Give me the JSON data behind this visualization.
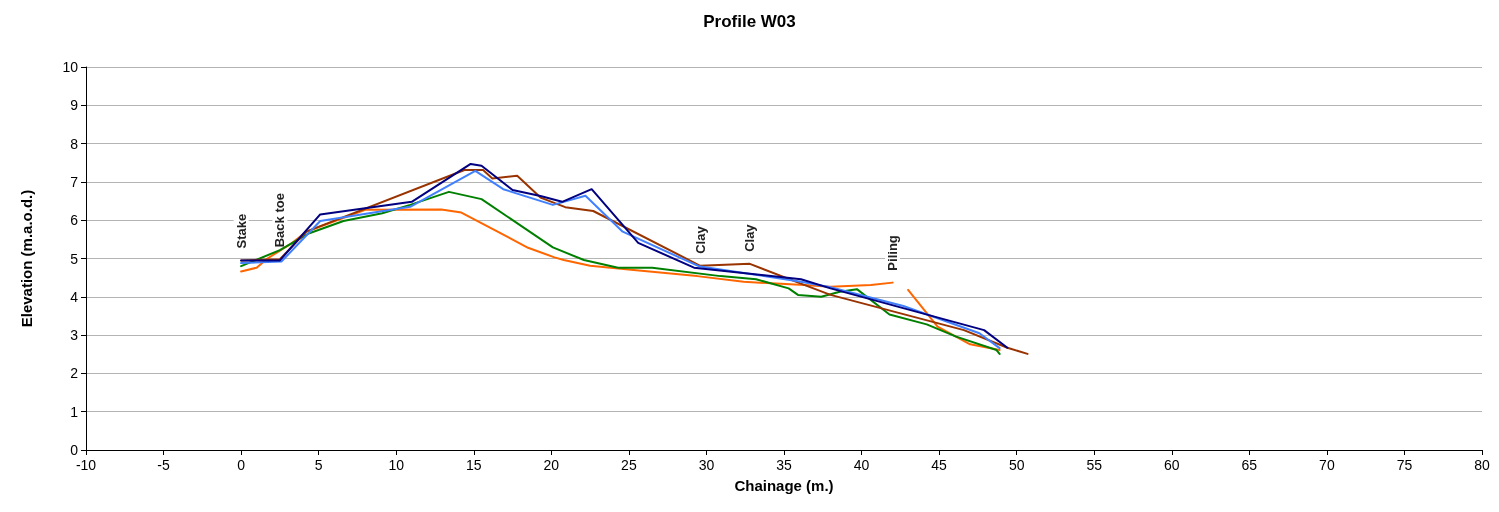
{
  "chart_data": {
    "type": "line",
    "title": "Profile W03",
    "xlabel": "Chainage (m.)",
    "ylabel": "Elevation (m.a.o.d.)",
    "xlim": [
      -10,
      80
    ],
    "xticks": [
      -10,
      -5,
      0,
      5,
      10,
      15,
      20,
      25,
      30,
      35,
      40,
      45,
      50,
      55,
      60,
      65,
      70,
      75,
      80
    ],
    "ylim": [
      0,
      10
    ],
    "yticks": [
      0,
      1,
      2,
      3,
      4,
      5,
      6,
      7,
      8,
      9,
      10
    ],
    "grid": "y",
    "marker": "none",
    "line_style": "solid",
    "annotations": [
      {
        "text": "Stake",
        "x": 0,
        "y": 4.95
      },
      {
        "text": "Back toe",
        "x": 2.5,
        "y": 4.98
      },
      {
        "text": "Clay",
        "x": 29.6,
        "y": 4.81
      },
      {
        "text": "Clay",
        "x": 32.8,
        "y": 4.86
      },
      {
        "text": "Piling",
        "x": 42.0,
        "y": 4.37
      }
    ],
    "series": [
      {
        "color": "#ff6600",
        "x": [
          0,
          1.0,
          1.7,
          3.3,
          4.2,
          8.0,
          12.9,
          14.2,
          18.5,
          20.2,
          20.8,
          22.5,
          25.3,
          29.4,
          32.4,
          36.3,
          38,
          40.6,
          42.0,
          42.5,
          43.0,
          44.9,
          47.0,
          48.9
        ],
        "values": [
          4.66,
          4.76,
          5.0,
          5.41,
          5.7,
          6.27,
          6.28,
          6.2,
          5.28,
          5.03,
          4.96,
          4.81,
          4.7,
          4.54,
          4.39,
          4.31,
          4.26,
          4.31,
          4.37,
          null,
          4.18,
          3.22,
          2.76,
          2.61
        ]
      },
      {
        "color": "#008000",
        "x": [
          0,
          2.5,
          4.4,
          6.6,
          9.1,
          10.9,
          13.4,
          15.5,
          20.1,
          22.1,
          24.3,
          26.5,
          30.9,
          33.2,
          35.3,
          35.9,
          37.4,
          38.6,
          39.7,
          41.8,
          44.2,
          46.1,
          48.7,
          48.9
        ],
        "values": [
          4.8,
          5.22,
          5.66,
          5.98,
          6.18,
          6.4,
          6.74,
          6.55,
          5.29,
          4.96,
          4.76,
          4.76,
          4.54,
          4.46,
          4.22,
          4.05,
          4.0,
          4.13,
          4.2,
          3.54,
          3.28,
          2.96,
          2.61,
          2.51
        ]
      },
      {
        "color": "#993300",
        "x": [
          0,
          2.5,
          4.2,
          14.4,
          15.6,
          16.2,
          17.8,
          19.3,
          20.9,
          22.7,
          29.6,
          32.8,
          36.3,
          38,
          46.6,
          49.4,
          50.7
        ],
        "values": [
          4.95,
          4.98,
          5.7,
          7.31,
          7.31,
          7.09,
          7.16,
          6.59,
          6.34,
          6.24,
          4.81,
          4.86,
          4.31,
          4.05,
          3.13,
          2.67,
          2.51
        ]
      },
      {
        "color": "#4080ff",
        "x": [
          0,
          2.6,
          5.1,
          10.9,
          15.1,
          16.9,
          20.1,
          22.2,
          24.6,
          29.5,
          36,
          38,
          42.7,
          47.6,
          48.9
        ],
        "values": [
          4.88,
          4.92,
          5.98,
          6.35,
          7.29,
          6.81,
          6.4,
          6.64,
          5.7,
          4.8,
          4.4,
          4.25,
          3.76,
          3.05,
          2.66
        ]
      },
      {
        "color": "#000080",
        "x": [
          0,
          2.5,
          5.1,
          11.0,
          14.8,
          15.5,
          17.5,
          19.3,
          20.7,
          22.6,
          25.6,
          29.2,
          36.1,
          38,
          47.9,
          49.4
        ],
        "values": [
          4.95,
          4.95,
          6.15,
          6.48,
          7.47,
          7.42,
          6.79,
          6.63,
          6.48,
          6.81,
          5.41,
          4.76,
          4.46,
          4.22,
          3.13,
          2.67
        ]
      }
    ]
  }
}
